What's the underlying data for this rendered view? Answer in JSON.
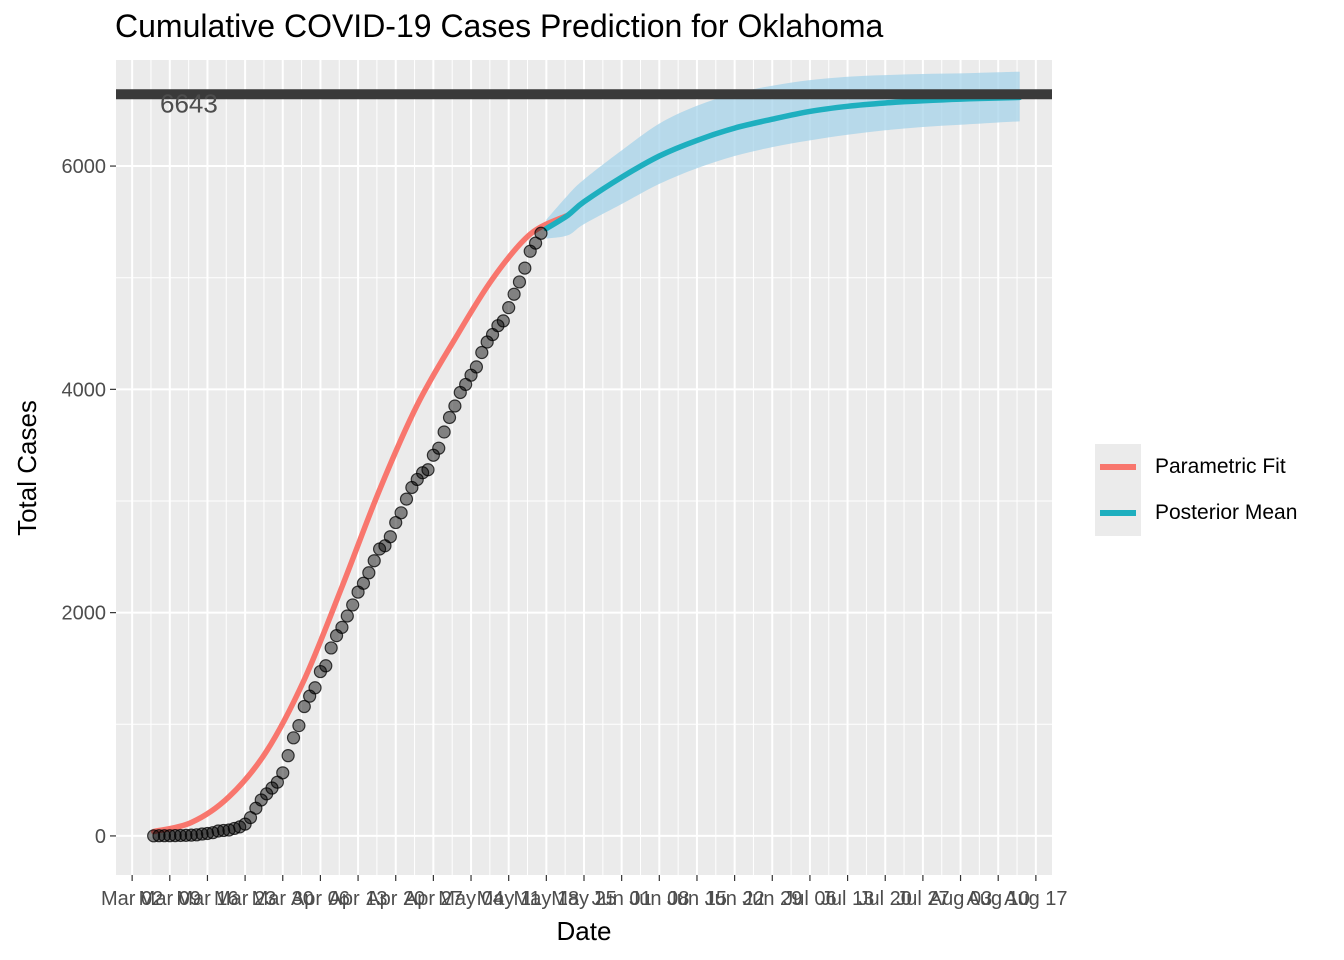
{
  "chart_data": {
    "type": "line",
    "title": "Cumulative COVID-19 Cases Prediction for Oklahoma",
    "xlabel": "Date",
    "ylabel": "Total Cases",
    "ylim": [
      -350,
      6950
    ],
    "xlim": [
      "2020-02-28",
      "2020-08-20"
    ],
    "y_ticks": [
      0,
      2000,
      4000,
      6000
    ],
    "x_ticks": [
      "Mar 02",
      "Mar 09",
      "Mar 16",
      "Mar 23",
      "Mar 30",
      "Apr 06",
      "Apr 13",
      "Apr 20",
      "Apr 27",
      "May 04",
      "May 11",
      "May 18",
      "May 25",
      "Jun 01",
      "Jun 08",
      "Jun 15",
      "Jun 22",
      "Jun 29",
      "Jul 06",
      "Jul 13",
      "Jul 20",
      "Jul 27",
      "Aug 03",
      "Aug 10",
      "Aug 17"
    ],
    "legend_position": "right",
    "grid": true,
    "hline": {
      "value": 6643,
      "label": "6643",
      "color": "#3a3a3a"
    },
    "colors": {
      "parametric": "#f8766d",
      "posterior": "#1eafbf",
      "band": "#a6d3ea",
      "panel": "#ebebeb",
      "points": "#000000"
    },
    "legend": [
      {
        "name": "Parametric Fit",
        "color": "#f8766d"
      },
      {
        "name": "Posterior Mean",
        "color": "#1eafbf"
      }
    ],
    "observed": {
      "x_start": "2020-03-06",
      "values": [
        1,
        2,
        2,
        2,
        3,
        4,
        5,
        7,
        10,
        17,
        22,
        29,
        44,
        49,
        53,
        67,
        81,
        106,
        164,
        248,
        322,
        377,
        429,
        481,
        565,
        719,
        879,
        988,
        1159,
        1252,
        1327,
        1472,
        1524,
        1684,
        1794,
        1868,
        1970,
        2069,
        2184,
        2263,
        2357,
        2465,
        2570,
        2599,
        2680,
        2807,
        2894,
        3017,
        3121,
        3193,
        3253,
        3280,
        3410,
        3473,
        3618,
        3748,
        3851,
        3972,
        4044,
        4127,
        4201,
        4330,
        4424,
        4491,
        4570,
        4613,
        4732,
        4852,
        4962,
        5086,
        5237,
        5310,
        5398
      ]
    },
    "parametric_fit": {
      "x": [
        "2020-03-06",
        "2020-03-13",
        "2020-03-20",
        "2020-03-27",
        "2020-04-03",
        "2020-04-10",
        "2020-04-17",
        "2020-04-24",
        "2020-05-01",
        "2020-05-08",
        "2020-05-15",
        "2020-05-22"
      ],
      "values": [
        40,
        120,
        350,
        760,
        1400,
        2230,
        3100,
        3860,
        4450,
        4990,
        5390,
        5560
      ]
    },
    "posterior_mean": {
      "x": [
        "2020-05-18",
        "2020-05-22",
        "2020-05-25",
        "2020-06-01",
        "2020-06-08",
        "2020-06-15",
        "2020-06-22",
        "2020-06-29",
        "2020-07-06",
        "2020-07-13",
        "2020-07-20",
        "2020-07-27",
        "2020-08-03",
        "2020-08-10",
        "2020-08-14"
      ],
      "values": [
        5440,
        5560,
        5680,
        5900,
        6090,
        6230,
        6340,
        6420,
        6490,
        6535,
        6565,
        6585,
        6600,
        6610,
        6615
      ],
      "lower": [
        5350,
        5380,
        5480,
        5660,
        5840,
        5980,
        6090,
        6170,
        6230,
        6280,
        6320,
        6350,
        6370,
        6390,
        6400
      ],
      "upper": [
        5520,
        5740,
        5880,
        6140,
        6380,
        6540,
        6650,
        6720,
        6770,
        6800,
        6815,
        6825,
        6830,
        6840,
        6845
      ]
    }
  }
}
